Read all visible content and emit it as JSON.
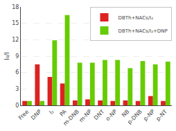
{
  "chart_data": {
    "type": "bar",
    "categories": [
      "Free",
      "DNP",
      "I₂",
      "PA",
      "m-DNB",
      "m-NP",
      "DNT",
      "o-NP",
      "NB",
      "p-DNB",
      "p-NP",
      "p-NT"
    ],
    "series": [
      {
        "name": "DBTh+NACs/I₂",
        "color": "#dd2222",
        "values": [
          0.8,
          7.5,
          5.2,
          4.0,
          0.9,
          1.1,
          0.9,
          0.8,
          0.9,
          0.8,
          1.7,
          0.8
        ]
      },
      {
        "name": "DBTh+NACs/I₂+DNP",
        "color": "#66cc00",
        "values": [
          0.8,
          0.8,
          11.9,
          16.5,
          7.8,
          7.8,
          8.3,
          8.3,
          6.8,
          8.1,
          7.5,
          8.0
        ]
      }
    ],
    "ylabel": "I₀/I",
    "ylim": [
      0,
      18
    ],
    "yticks": [
      0,
      3,
      6,
      9,
      12,
      15,
      18
    ],
    "grid": true,
    "legend": "upper right"
  }
}
